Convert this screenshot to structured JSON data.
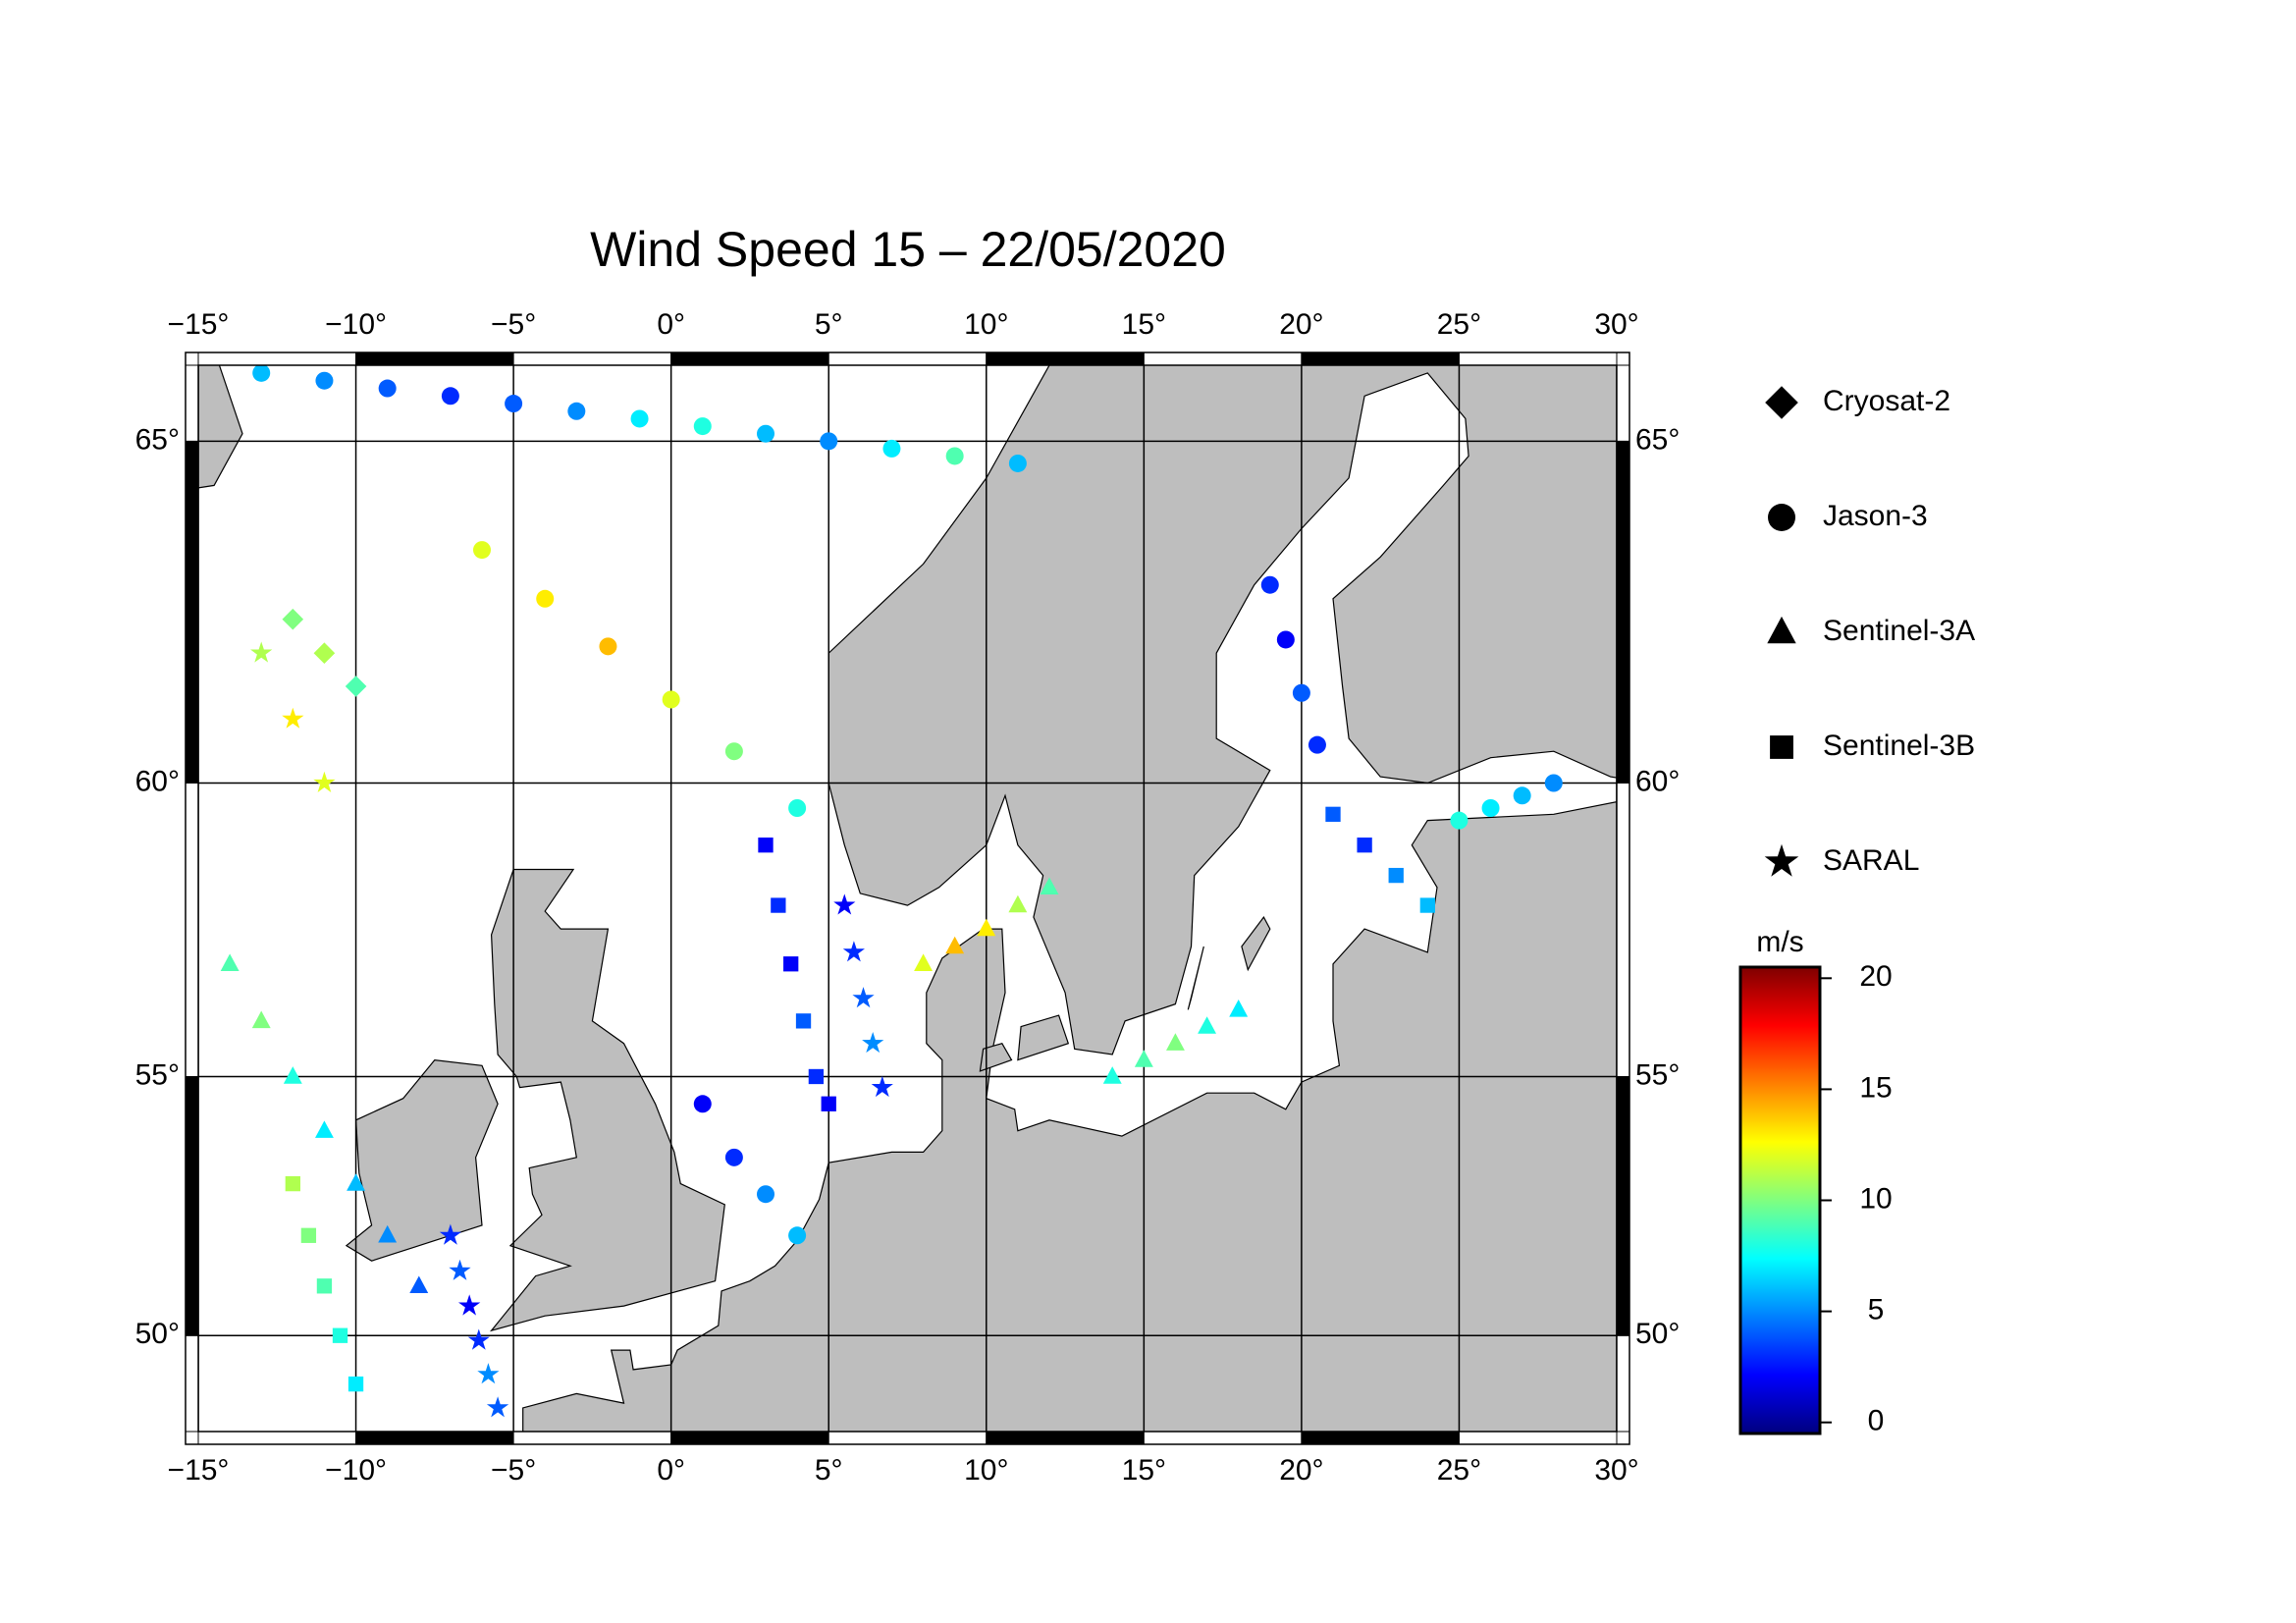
{
  "chart_data": {
    "type": "scatter",
    "title": "Wind Speed 15 – 22/05/2020",
    "projection": "mercator",
    "xlim": [
      -15,
      30
    ],
    "ylim": [
      48,
      66
    ],
    "xticks": [
      {
        "value": -15,
        "label": "−15°"
      },
      {
        "value": -10,
        "label": "−10°"
      },
      {
        "value": -5,
        "label": "−5°"
      },
      {
        "value": 0,
        "label": "0°"
      },
      {
        "value": 5,
        "label": "5°"
      },
      {
        "value": 10,
        "label": "10°"
      },
      {
        "value": 15,
        "label": "15°"
      },
      {
        "value": 20,
        "label": "20°"
      },
      {
        "value": 25,
        "label": "25°"
      },
      {
        "value": 30,
        "label": "30°"
      }
    ],
    "yticks": [
      {
        "value": 50,
        "label": "50°"
      },
      {
        "value": 55,
        "label": "55°"
      },
      {
        "value": 60,
        "label": "60°"
      },
      {
        "value": 65,
        "label": "65°"
      }
    ],
    "grid": true,
    "legend": "right",
    "colorbar": {
      "label": "m/s",
      "lim": [
        -0.5,
        20.5
      ],
      "ticks": [
        0,
        5,
        10,
        15,
        20
      ],
      "colorscale": [
        [
          0,
          "#00007f"
        ],
        [
          0.125,
          "#0000ff"
        ],
        [
          0.375,
          "#00ffff"
        ],
        [
          0.625,
          "#ffff00"
        ],
        [
          0.875,
          "#ff0000"
        ],
        [
          1,
          "#7f0000"
        ]
      ]
    },
    "series": [
      {
        "name": "Cryosat-2",
        "marker": "diamond",
        "x": [
          -12,
          -11,
          -10
        ],
        "y": [
          62.5,
          62,
          61.5
        ],
        "values": [
          10,
          11,
          9
        ]
      },
      {
        "name": "Jason-3",
        "marker": "circle",
        "x": [
          -13,
          -11,
          -9,
          -7,
          -5,
          -3,
          -1,
          1,
          3,
          5,
          7,
          9,
          11,
          -6,
          -4,
          -2,
          0,
          2,
          4,
          19,
          19.5,
          20,
          20.5,
          28,
          27,
          26,
          25,
          1,
          2,
          3,
          4
        ],
        "y": [
          65.9,
          65.8,
          65.7,
          65.6,
          65.5,
          65.4,
          65.3,
          65.2,
          65.1,
          65.0,
          64.9,
          64.8,
          64.7,
          63.5,
          62.8,
          62.1,
          61.3,
          60.5,
          59.6,
          63.0,
          62.2,
          61.4,
          60.6,
          60.0,
          59.8,
          59.6,
          59.4,
          54.5,
          53.5,
          52.8,
          52.0
        ],
        "values": [
          6,
          5,
          4,
          3,
          4,
          5,
          7,
          8,
          6,
          5,
          7,
          9,
          6,
          12,
          13,
          14,
          12,
          10,
          8,
          3,
          2,
          4,
          3,
          5,
          6,
          7,
          8,
          2,
          3,
          5,
          6
        ]
      },
      {
        "name": "Sentinel-3A",
        "marker": "triangle",
        "x": [
          -14,
          -13,
          -12,
          -11,
          -10,
          -9,
          -8,
          8,
          9,
          10,
          11,
          12,
          14,
          15,
          16,
          17,
          18
        ],
        "y": [
          57,
          56,
          55,
          54,
          53,
          52,
          51,
          57,
          57.3,
          57.6,
          58,
          58.3,
          55.0,
          55.3,
          55.6,
          55.9,
          56.2
        ],
        "values": [
          9,
          10,
          8,
          7,
          6,
          5,
          4,
          12,
          14,
          13,
          11,
          9,
          8,
          9,
          10,
          8,
          7
        ]
      },
      {
        "name": "Sentinel-3B",
        "marker": "square",
        "x": [
          3,
          3.4,
          3.8,
          4.2,
          4.6,
          5,
          -12,
          -11.5,
          -11,
          -10.5,
          -10,
          21,
          22,
          23,
          24
        ],
        "y": [
          59,
          58,
          57,
          56,
          55,
          54.5,
          53,
          52,
          51,
          50,
          49,
          59.5,
          59,
          58.5,
          58
        ],
        "values": [
          2,
          3,
          2,
          4,
          3,
          2,
          11,
          10,
          9,
          8,
          7,
          4,
          3,
          5,
          6
        ]
      },
      {
        "name": "SARAL",
        "marker": "star",
        "x": [
          -7,
          -6.7,
          -6.4,
          -6.1,
          -5.8,
          -5.5,
          5.5,
          5.8,
          6.1,
          6.4,
          6.7,
          -13,
          -12,
          -11
        ],
        "y": [
          52,
          51.3,
          50.6,
          49.9,
          49.2,
          48.5,
          58,
          57.2,
          56.4,
          55.6,
          54.8,
          62,
          61,
          60
        ],
        "values": [
          3,
          4,
          2,
          3,
          5,
          4,
          2,
          3,
          4,
          5,
          3,
          11,
          13,
          12
        ]
      }
    ]
  }
}
